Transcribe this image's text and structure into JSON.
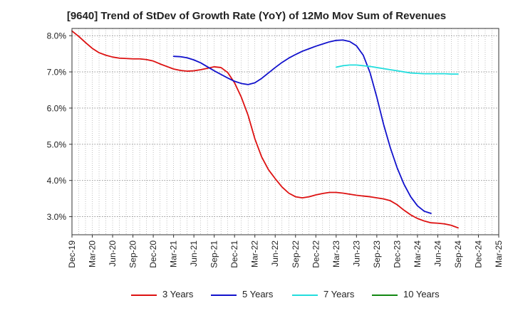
{
  "chart_data": {
    "type": "line",
    "title": "[9640]  Trend of StDev of Growth Rate (YoY) of 12Mo Mov Sum of Revenues",
    "xlabel": "",
    "ylabel": "",
    "ylim": [
      2.5,
      8.2
    ],
    "y_ticks": [
      3.0,
      4.0,
      5.0,
      6.0,
      7.0,
      8.0
    ],
    "y_tick_labels": [
      "3.0%",
      "4.0%",
      "5.0%",
      "6.0%",
      "7.0%",
      "8.0%"
    ],
    "x_tick_labels": [
      "Dec-19",
      "Mar-20",
      "Jun-20",
      "Sep-20",
      "Dec-20",
      "Mar-21",
      "Jun-21",
      "Sep-21",
      "Dec-21",
      "Mar-22",
      "Jun-22",
      "Sep-22",
      "Dec-22",
      "Mar-23",
      "Jun-23",
      "Sep-23",
      "Dec-23",
      "Mar-24",
      "Jun-24",
      "Sep-24",
      "Dec-24",
      "Mar-25"
    ],
    "grid": true,
    "legend_position": "bottom",
    "series": [
      {
        "name": "3 Years",
        "color": "#dd1111",
        "start_index": 0,
        "values": [
          8.13,
          7.98,
          7.81,
          7.65,
          7.53,
          7.46,
          7.41,
          7.38,
          7.37,
          7.36,
          7.36,
          7.34,
          7.3,
          7.22,
          7.15,
          7.08,
          7.04,
          7.02,
          7.03,
          7.06,
          7.1,
          7.14,
          7.12,
          6.98,
          6.7,
          6.3,
          5.8,
          5.15,
          4.65,
          4.3,
          4.05,
          3.82,
          3.65,
          3.55,
          3.52,
          3.55,
          3.6,
          3.64,
          3.67,
          3.67,
          3.65,
          3.62,
          3.59,
          3.57,
          3.55,
          3.52,
          3.49,
          3.44,
          3.33,
          3.18,
          3.05,
          2.95,
          2.88,
          2.83,
          2.82,
          2.8,
          2.76,
          2.69
        ]
      },
      {
        "name": "5 Years",
        "color": "#1111cc",
        "start_index": 15,
        "values": [
          7.43,
          7.42,
          7.39,
          7.33,
          7.25,
          7.14,
          7.03,
          6.93,
          6.83,
          6.74,
          6.68,
          6.65,
          6.7,
          6.82,
          6.97,
          7.12,
          7.26,
          7.38,
          7.48,
          7.57,
          7.64,
          7.71,
          7.77,
          7.83,
          7.87,
          7.88,
          7.84,
          7.72,
          7.46,
          6.98,
          6.3,
          5.55,
          4.9,
          4.35,
          3.9,
          3.55,
          3.3,
          3.15,
          3.09
        ]
      },
      {
        "name": "7 Years",
        "color": "#22dddd",
        "start_index": 39,
        "values": [
          7.13,
          7.17,
          7.19,
          7.19,
          7.17,
          7.15,
          7.12,
          7.09,
          7.06,
          7.03,
          7.0,
          6.97,
          6.96,
          6.95,
          6.95,
          6.95,
          6.95,
          6.94,
          6.94
        ]
      },
      {
        "name": "10 Years",
        "color": "#118811",
        "start_index": 0,
        "values": []
      }
    ]
  }
}
